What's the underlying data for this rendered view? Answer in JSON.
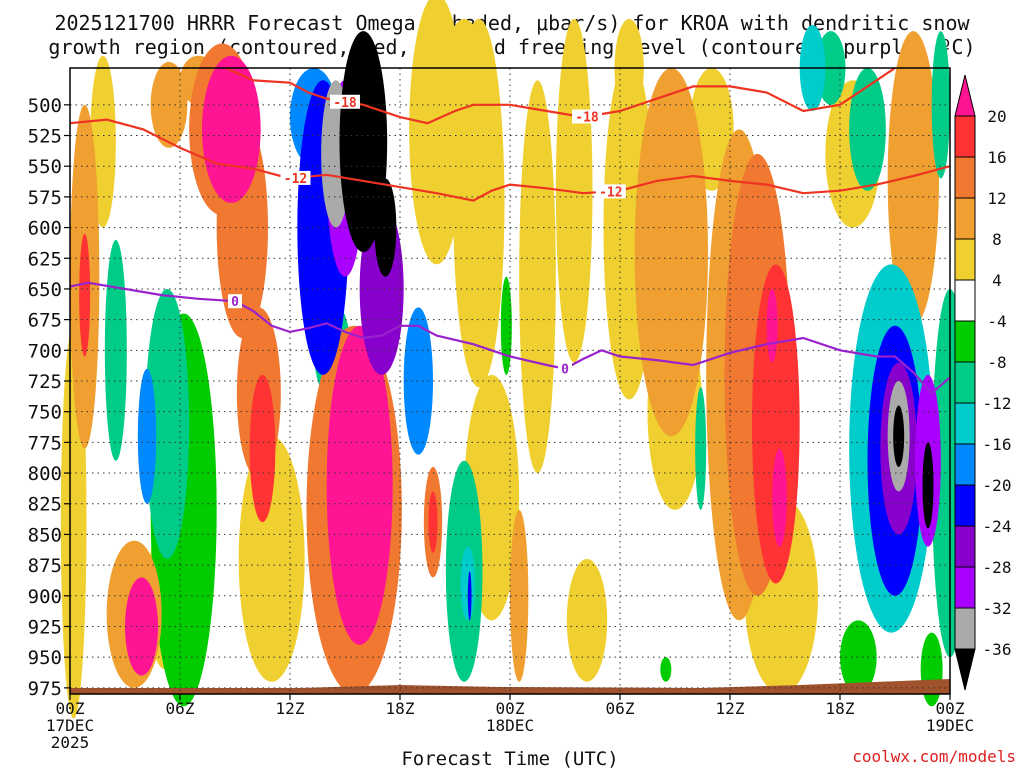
{
  "chart_data": {
    "type": "heatmap",
    "title_line1": "2025121700 HRRR Forecast Omega (shaded, μbar/s) for KROA with dendritic snow",
    "title_line2": "growth region (contoured, red, ºC) and freezing level (contoured, purple, ºC)",
    "xlabel": "Forecast Time (UTC)",
    "watermark": "coolwx.com/models",
    "x_hours_range": [
      0,
      48
    ],
    "y_range_hpa": [
      980,
      470
    ],
    "y_ticks": [
      500,
      525,
      550,
      575,
      600,
      625,
      650,
      675,
      700,
      725,
      750,
      775,
      800,
      825,
      850,
      875,
      900,
      925,
      950,
      975
    ],
    "x_ticks": [
      {
        "hour": 0,
        "lines": [
          "00Z",
          "17DEC",
          "2025"
        ]
      },
      {
        "hour": 6,
        "lines": [
          "06Z"
        ]
      },
      {
        "hour": 12,
        "lines": [
          "12Z"
        ]
      },
      {
        "hour": 18,
        "lines": [
          "18Z"
        ]
      },
      {
        "hour": 24,
        "lines": [
          "00Z",
          "18DEC"
        ]
      },
      {
        "hour": 30,
        "lines": [
          "06Z"
        ]
      },
      {
        "hour": 36,
        "lines": [
          "12Z"
        ]
      },
      {
        "hour": 42,
        "lines": [
          "18Z"
        ]
      },
      {
        "hour": 48,
        "lines": [
          "00Z",
          "19DEC"
        ]
      }
    ],
    "colorbar": {
      "labels": [
        "20",
        "16",
        "12",
        "8",
        "4",
        "-4",
        "-8",
        "-12",
        "-16",
        "-20",
        "-24",
        "-28",
        "-32",
        "-36"
      ],
      "colors": [
        "#ff1493",
        "#ff3333",
        "#f07830",
        "#f0a030",
        "#f0d030",
        "#ffffff",
        "#00cc00",
        "#00cc88",
        "#00cccc",
        "#0088ff",
        "#0000ff",
        "#8800cc",
        "#aa00ff",
        "#aaaaaa",
        "#000000"
      ]
    },
    "omega_blobs": [
      {
        "h": 0.8,
        "p": 640,
        "rh": 0.8,
        "rp": 140,
        "v": 10
      },
      {
        "h": 0.8,
        "p": 655,
        "rh": 0.3,
        "rp": 50,
        "v": 18
      },
      {
        "h": 0.2,
        "p": 840,
        "rh": 0.7,
        "rp": 160,
        "v": 7
      },
      {
        "h": 1.8,
        "p": 530,
        "rh": 0.7,
        "rp": 70,
        "v": 5
      },
      {
        "h": 2.5,
        "p": 700,
        "rh": 0.6,
        "rp": 90,
        "v": -8
      },
      {
        "h": 3.5,
        "p": 915,
        "rh": 1.5,
        "rp": 60,
        "v": 8
      },
      {
        "h": 3.9,
        "p": 925,
        "rh": 0.9,
        "rp": 40,
        "v": 20
      },
      {
        "h": 4.2,
        "p": 770,
        "rh": 0.5,
        "rp": 55,
        "v": -16
      },
      {
        "h": 5.3,
        "p": 760,
        "rh": 1.2,
        "rp": 110,
        "v": -10
      },
      {
        "h": 5.2,
        "p": 900,
        "rh": 1.0,
        "rp": 60,
        "v": 6
      },
      {
        "h": 6.2,
        "p": 830,
        "rh": 1.8,
        "rp": 160,
        "v": -7
      },
      {
        "h": 5.4,
        "p": 500,
        "rh": 1.0,
        "rp": 35,
        "v": 8
      },
      {
        "h": 7.0,
        "p": 480,
        "rh": 1.0,
        "rp": 20,
        "v": 10
      },
      {
        "h": 8.3,
        "p": 520,
        "rh": 1.8,
        "rp": 70,
        "v": 12
      },
      {
        "h": 8.8,
        "p": 520,
        "rh": 1.6,
        "rp": 60,
        "v": 20
      },
      {
        "h": 9.4,
        "p": 600,
        "rh": 1.4,
        "rp": 90,
        "v": 14
      },
      {
        "h": 10.3,
        "p": 735,
        "rh": 1.2,
        "rp": 70,
        "v": 12
      },
      {
        "h": 10.5,
        "p": 780,
        "rh": 0.7,
        "rp": 60,
        "v": 17
      },
      {
        "h": 11.0,
        "p": 870,
        "rh": 1.8,
        "rp": 100,
        "v": 5
      },
      {
        "h": 13.3,
        "p": 510,
        "rh": 1.3,
        "rp": 40,
        "v": -18
      },
      {
        "h": 13.8,
        "p": 600,
        "rh": 1.4,
        "rp": 120,
        "v": -22
      },
      {
        "h": 14.3,
        "p": 700,
        "rh": 1.0,
        "rp": 40,
        "v": -10
      },
      {
        "h": 14.5,
        "p": 540,
        "rh": 0.8,
        "rp": 60,
        "v": -33
      },
      {
        "h": 15.0,
        "p": 560,
        "rh": 1.0,
        "rp": 80,
        "v": -28
      },
      {
        "h": 16.0,
        "p": 530,
        "rh": 1.3,
        "rp": 90,
        "v": -40
      },
      {
        "h": 17.2,
        "p": 600,
        "rh": 0.6,
        "rp": 40,
        "v": -40
      },
      {
        "h": 17.0,
        "p": 650,
        "rh": 1.2,
        "rp": 70,
        "v": -26
      },
      {
        "h": 19.0,
        "p": 725,
        "rh": 0.8,
        "rp": 60,
        "v": -18
      },
      {
        "h": 15.5,
        "p": 830,
        "rh": 2.6,
        "rp": 150,
        "v": 14
      },
      {
        "h": 15.8,
        "p": 810,
        "rh": 1.8,
        "rp": 130,
        "v": 21
      },
      {
        "h": 19.8,
        "p": 840,
        "rh": 0.5,
        "rp": 45,
        "v": 14
      },
      {
        "h": 19.8,
        "p": 840,
        "rh": 0.25,
        "rp": 25,
        "v": 18
      },
      {
        "h": 20.0,
        "p": 520,
        "rh": 1.5,
        "rp": 110,
        "v": 6
      },
      {
        "h": 21.5,
        "p": 470,
        "rh": 1.0,
        "rp": 40,
        "v": 7
      },
      {
        "h": 21.5,
        "p": 880,
        "rh": 1.0,
        "rp": 90,
        "v": -8
      },
      {
        "h": 21.7,
        "p": 890,
        "rh": 0.4,
        "rp": 30,
        "v": -14
      },
      {
        "h": 21.8,
        "p": 900,
        "rh": 0.1,
        "rp": 20,
        "v": -20
      },
      {
        "h": 22.3,
        "p": 580,
        "rh": 1.4,
        "rp": 150,
        "v": 7
      },
      {
        "h": 23.0,
        "p": 820,
        "rh": 1.5,
        "rp": 100,
        "v": 5
      },
      {
        "h": 23.8,
        "p": 680,
        "rh": 0.3,
        "rp": 40,
        "v": -6
      },
      {
        "h": 24.5,
        "p": 900,
        "rh": 0.5,
        "rp": 70,
        "v": 8
      },
      {
        "h": 25.5,
        "p": 640,
        "rh": 1.0,
        "rp": 160,
        "v": 6
      },
      {
        "h": 27.5,
        "p": 570,
        "rh": 1.0,
        "rp": 140,
        "v": 6
      },
      {
        "h": 28.2,
        "p": 920,
        "rh": 1.1,
        "rp": 50,
        "v": 5
      },
      {
        "h": 30.5,
        "p": 470,
        "rh": 0.8,
        "rp": 40,
        "v": 7
      },
      {
        "h": 30.5,
        "p": 600,
        "rh": 1.4,
        "rp": 140,
        "v": 6
      },
      {
        "h": 32.8,
        "p": 620,
        "rh": 2.0,
        "rp": 150,
        "v": 8
      },
      {
        "h": 33.0,
        "p": 750,
        "rh": 1.5,
        "rp": 80,
        "v": 5
      },
      {
        "h": 34.4,
        "p": 780,
        "rh": 0.3,
        "rp": 50,
        "v": -8
      },
      {
        "h": 35.0,
        "p": 520,
        "rh": 1.2,
        "rp": 50,
        "v": 6
      },
      {
        "h": 36.5,
        "p": 720,
        "rh": 1.8,
        "rp": 200,
        "v": 8
      },
      {
        "h": 37.5,
        "p": 720,
        "rh": 1.8,
        "rp": 180,
        "v": 12
      },
      {
        "h": 38.5,
        "p": 760,
        "rh": 1.3,
        "rp": 130,
        "v": 16
      },
      {
        "h": 38.8,
        "p": 780,
        "rh": 0.6,
        "rp": 70,
        "v": 19
      },
      {
        "h": 38.7,
        "p": 820,
        "rh": 0.4,
        "rp": 40,
        "v": 22
      },
      {
        "h": 38.3,
        "p": 680,
        "rh": 0.3,
        "rp": 30,
        "v": 20
      },
      {
        "h": 38.8,
        "p": 900,
        "rh": 2.0,
        "rp": 80,
        "v": 7
      },
      {
        "h": 40.5,
        "p": 470,
        "rh": 0.7,
        "rp": 35,
        "v": -14
      },
      {
        "h": 41.5,
        "p": 470,
        "rh": 0.8,
        "rp": 30,
        "v": -8
      },
      {
        "h": 43.5,
        "p": 520,
        "rh": 1.0,
        "rp": 50,
        "v": -10
      },
      {
        "h": 42.7,
        "p": 540,
        "rh": 1.5,
        "rp": 60,
        "v": 6
      },
      {
        "h": 46.0,
        "p": 560,
        "rh": 1.4,
        "rp": 120,
        "v": 8
      },
      {
        "h": 47.5,
        "p": 500,
        "rh": 0.5,
        "rp": 60,
        "v": -10
      },
      {
        "h": 44.8,
        "p": 780,
        "rh": 2.3,
        "rp": 150,
        "v": -12
      },
      {
        "h": 45.0,
        "p": 790,
        "rh": 1.5,
        "rp": 110,
        "v": -20
      },
      {
        "h": 45.2,
        "p": 780,
        "rh": 1.0,
        "rp": 70,
        "v": -27
      },
      {
        "h": 45.2,
        "p": 770,
        "rh": 0.6,
        "rp": 45,
        "v": -34
      },
      {
        "h": 45.2,
        "p": 770,
        "rh": 0.3,
        "rp": 25,
        "v": -40
      },
      {
        "h": 46.8,
        "p": 790,
        "rh": 0.7,
        "rp": 70,
        "v": -28
      },
      {
        "h": 46.8,
        "p": 810,
        "rh": 0.3,
        "rp": 35,
        "v": -40
      },
      {
        "h": 48.0,
        "p": 800,
        "rh": 1.0,
        "rp": 150,
        "v": -8
      },
      {
        "h": 43.0,
        "p": 950,
        "rh": 1.0,
        "rp": 30,
        "v": -6
      },
      {
        "h": 47.0,
        "p": 960,
        "rh": 0.6,
        "rp": 30,
        "v": -6
      },
      {
        "h": 32.5,
        "p": 960,
        "rh": 0.3,
        "rp": 10,
        "v": -6
      }
    ],
    "dgz_series": [
      {
        "name": "-18",
        "label": "-18",
        "label_hours": [
          15.0,
          28.2
        ],
        "points": [
          [
            8.5,
            470
          ],
          [
            10,
            480
          ],
          [
            12,
            482
          ],
          [
            13,
            490
          ],
          [
            14,
            495
          ],
          [
            16,
            500
          ],
          [
            18,
            510
          ],
          [
            19.5,
            515
          ],
          [
            21,
            505
          ],
          [
            22,
            500
          ],
          [
            24,
            500
          ],
          [
            26,
            505
          ],
          [
            28,
            510
          ],
          [
            30,
            505
          ],
          [
            32,
            495
          ],
          [
            34,
            485
          ],
          [
            36,
            485
          ],
          [
            38,
            490
          ],
          [
            40,
            505
          ],
          [
            42,
            500
          ],
          [
            44,
            480
          ],
          [
            45,
            470
          ]
        ]
      },
      {
        "name": "-12",
        "label": "-12",
        "label_hours": [
          12.3,
          29.5
        ],
        "points": [
          [
            0,
            515
          ],
          [
            2,
            512
          ],
          [
            4,
            520
          ],
          [
            6,
            535
          ],
          [
            8,
            548
          ],
          [
            10,
            552
          ],
          [
            12,
            560
          ],
          [
            14,
            557
          ],
          [
            16,
            562
          ],
          [
            18,
            567
          ],
          [
            20,
            572
          ],
          [
            22,
            578
          ],
          [
            23,
            570
          ],
          [
            24,
            565
          ],
          [
            26,
            568
          ],
          [
            28,
            572
          ],
          [
            30,
            570
          ],
          [
            32,
            562
          ],
          [
            34,
            558
          ],
          [
            36,
            562
          ],
          [
            38,
            565
          ],
          [
            40,
            572
          ],
          [
            42,
            570
          ],
          [
            44,
            565
          ],
          [
            46,
            558
          ],
          [
            48,
            550
          ]
        ]
      },
      {
        "name": "0",
        "label": "0",
        "label_hours": [
          9.0,
          27.0
        ],
        "points": [
          [
            0,
            648
          ],
          [
            1,
            645
          ],
          [
            3,
            650
          ],
          [
            5,
            655
          ],
          [
            7,
            658
          ],
          [
            9,
            660
          ],
          [
            10,
            668
          ],
          [
            11,
            680
          ],
          [
            12,
            685
          ],
          [
            13,
            682
          ],
          [
            14,
            678
          ],
          [
            15,
            685
          ],
          [
            16,
            690
          ],
          [
            17,
            688
          ],
          [
            18,
            680
          ],
          [
            19,
            680
          ],
          [
            20,
            688
          ],
          [
            22,
            695
          ],
          [
            24,
            705
          ],
          [
            26,
            712
          ],
          [
            27,
            715
          ],
          [
            28,
            707
          ],
          [
            29,
            700
          ],
          [
            30,
            705
          ],
          [
            32,
            708
          ],
          [
            34,
            712
          ],
          [
            36,
            702
          ],
          [
            38,
            695
          ],
          [
            40,
            690
          ],
          [
            42,
            700
          ],
          [
            44,
            705
          ],
          [
            45,
            705
          ],
          [
            46,
            718
          ],
          [
            47,
            735
          ],
          [
            48,
            722
          ]
        ]
      }
    ]
  }
}
